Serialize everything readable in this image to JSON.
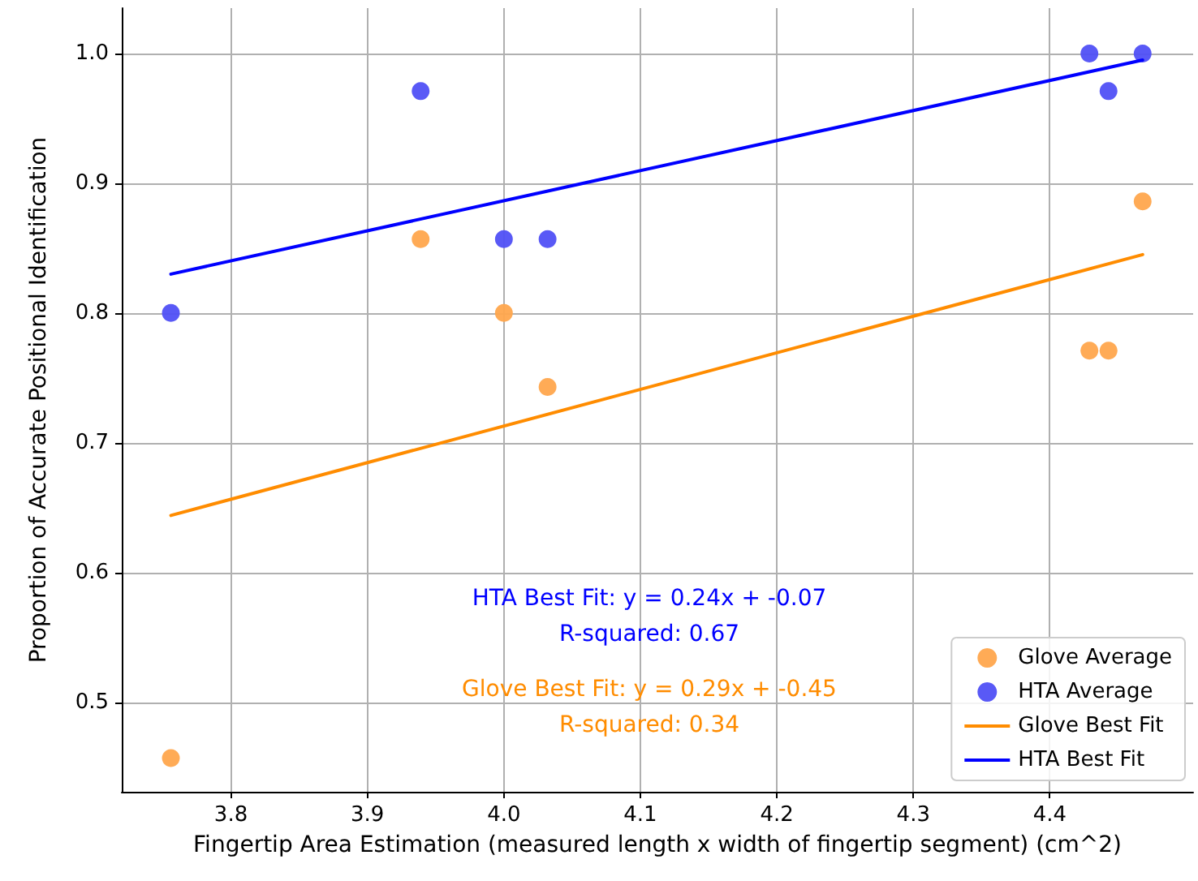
{
  "chart_data": {
    "type": "scatter",
    "xlabel": "Fingertip Area Estimation (measured length x width of fingertip segment) (cm^2)",
    "ylabel": "Proportion of Accurate Positional Identification",
    "xlim": [
      3.72,
      4.505
    ],
    "ylim": [
      0.431,
      1.035
    ],
    "xticks": [
      3.8,
      3.9,
      {
        "value": 4,
        "label": "4.0"
      },
      4.1,
      4.2,
      4.3,
      4.4
    ],
    "yticks": [
      0.5,
      0.6,
      0.7,
      0.8,
      0.9,
      {
        "value": 1,
        "label": "1.0"
      }
    ],
    "grid": true,
    "legend": "bottom right",
    "series": [
      {
        "name": "Glove Average",
        "marker": "circle",
        "color": "#ffa64d",
        "x": [
          3.756,
          3.939,
          4.0,
          4.032,
          4.429,
          4.443,
          4.468
        ],
        "values": [
          0.457,
          0.857,
          0.8,
          0.743,
          0.771,
          0.771,
          0.886
        ]
      },
      {
        "name": "HTA Average",
        "marker": "circle",
        "color": "#5050f5",
        "x": [
          3.756,
          3.939,
          4.0,
          4.032,
          4.429,
          4.443,
          4.468
        ],
        "values": [
          0.8,
          0.971,
          0.857,
          0.857,
          1.0,
          0.971,
          1.0
        ]
      },
      {
        "name": "Glove Best Fit",
        "type": "line",
        "marker": "none",
        "color": "#ff8c00",
        "x": [
          3.756,
          4.468
        ],
        "values": [
          0.644,
          0.845
        ]
      },
      {
        "name": "HTA Best Fit",
        "type": "line",
        "marker": "none",
        "color": "#0000ff",
        "x": [
          3.756,
          4.468
        ],
        "values": [
          0.83,
          0.995
        ]
      }
    ],
    "annotations": [
      "HTA Best Fit: y = 0.24x + -0.07\nR-squared: 0.67",
      "Glove Best Fit: y = 0.29x + -0.45\nR-squared: 0.34"
    ]
  }
}
